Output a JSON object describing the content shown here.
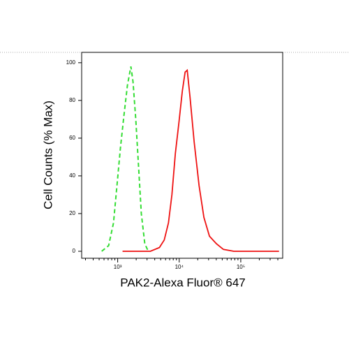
{
  "chart_data": {
    "type": "line",
    "x_label": "PAK2-Alexa Fluor® 647",
    "y_label": "Cell Counts (% Max)",
    "log_x": true,
    "xlim": [
      260,
      480000
    ],
    "xticks": [
      {
        "value": 1000,
        "label": "10³"
      },
      {
        "value": 10000,
        "label": "10⁴"
      },
      {
        "value": 100000,
        "label": "10⁵"
      }
    ],
    "xminorticks": [
      300,
      400,
      500,
      600,
      700,
      800,
      900,
      2000,
      3000,
      4000,
      5000,
      6000,
      7000,
      8000,
      9000,
      20000,
      30000,
      40000,
      50000,
      60000,
      70000,
      80000,
      90000,
      200000,
      300000,
      400000
    ],
    "ylim": [
      -3.7,
      105.5
    ],
    "yticks": [
      0,
      20,
      40,
      60,
      80,
      100
    ],
    "series": [
      {
        "color": "#33dd33",
        "dashed": true,
        "x": [
          550,
          713,
          855,
          975,
          1110,
          1264,
          1440,
          1640,
          1774,
          1968,
          2184,
          2422,
          2759,
          3142
        ],
        "values": [
          0,
          3,
          15,
          35,
          55,
          72,
          88,
          98,
          90,
          70,
          45,
          20,
          4,
          0
        ]
      },
      {
        "color": "#ee1111",
        "dashed": false,
        "x": [
          1200,
          3400,
          4770,
          5710,
          6680,
          7610,
          8660,
          9870,
          11240,
          12470,
          13490,
          14960,
          17490,
          20990,
          25180,
          31000,
          40240,
          52200,
          77100,
          418000
        ],
        "values": [
          0,
          0,
          2,
          6,
          15,
          30,
          52,
          68,
          85,
          95,
          96,
          82,
          58,
          35,
          18,
          8,
          4,
          1,
          0,
          0
        ]
      }
    ]
  }
}
